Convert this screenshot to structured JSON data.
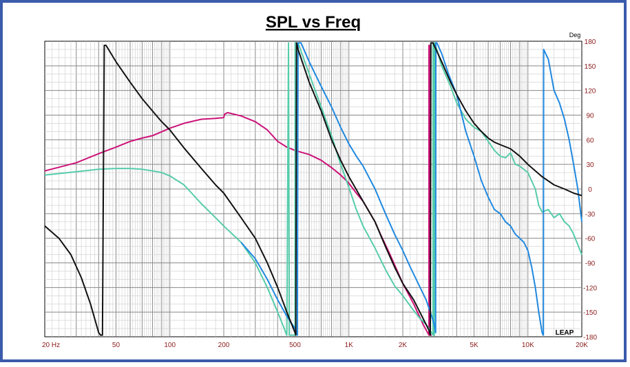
{
  "chart_data": {
    "type": "line",
    "title": "SPL vs Freq",
    "ylabel_unit": "Deg",
    "logo": "LEAP",
    "x_scale": "log",
    "xlim": [
      20,
      20000
    ],
    "ylim": [
      -180,
      180
    ],
    "grid": true,
    "x_ticks": [
      {
        "value": 20,
        "label": "20  Hz"
      },
      {
        "value": 50,
        "label": "50"
      },
      {
        "value": 100,
        "label": "100"
      },
      {
        "value": 200,
        "label": "200"
      },
      {
        "value": 500,
        "label": "500"
      },
      {
        "value": 1000,
        "label": "1K"
      },
      {
        "value": 2000,
        "label": "2K"
      },
      {
        "value": 5000,
        "label": "5K"
      },
      {
        "value": 10000,
        "label": "10K"
      },
      {
        "value": 20000,
        "label": "20K"
      }
    ],
    "y_ticks": [
      180,
      150,
      120,
      90,
      60,
      30,
      0,
      -30,
      -60,
      -90,
      -120,
      -150,
      -180
    ],
    "series": [
      {
        "color": "#cc1177",
        "points": [
          [
            20,
            22
          ],
          [
            30,
            32
          ],
          [
            40,
            43
          ],
          [
            50,
            51
          ],
          [
            60,
            58
          ],
          [
            70,
            62
          ],
          [
            80,
            65
          ],
          [
            100,
            74
          ],
          [
            120,
            80
          ],
          [
            150,
            85
          ],
          [
            180,
            86
          ],
          [
            200,
            87
          ],
          [
            202,
            91
          ],
          [
            210,
            93
          ],
          [
            250,
            89
          ],
          [
            300,
            82
          ],
          [
            350,
            72
          ],
          [
            400,
            58
          ],
          [
            450,
            51
          ],
          [
            500,
            47
          ],
          [
            600,
            42
          ],
          [
            700,
            35
          ],
          [
            800,
            26
          ],
          [
            900,
            17
          ],
          [
            1000,
            7
          ],
          [
            1100,
            -5
          ],
          [
            1200,
            -15
          ],
          [
            1300,
            -28
          ],
          [
            1400,
            -40
          ],
          [
            1500,
            -55
          ],
          [
            1700,
            -80
          ],
          [
            2000,
            -115
          ],
          [
            2300,
            -140
          ],
          [
            2600,
            -165
          ],
          [
            2800,
            -178
          ],
          [
            2801,
            175
          ],
          [
            2820,
            175
          ],
          [
            2821,
            -178
          ],
          [
            2900,
            -178
          ]
        ]
      },
      {
        "color": "#55ccaa",
        "points": [
          [
            20,
            17
          ],
          [
            30,
            21
          ],
          [
            40,
            24
          ],
          [
            50,
            25
          ],
          [
            60,
            25
          ],
          [
            70,
            24
          ],
          [
            80,
            22
          ],
          [
            90,
            20
          ],
          [
            100,
            16
          ],
          [
            120,
            5
          ],
          [
            150,
            -18
          ],
          [
            180,
            -35
          ],
          [
            200,
            -45
          ],
          [
            250,
            -65
          ],
          [
            300,
            -90
          ],
          [
            350,
            -120
          ],
          [
            400,
            -150
          ],
          [
            450,
            -178
          ],
          [
            460,
            178
          ],
          [
            465,
            -178
          ],
          [
            500,
            -178
          ],
          [
            501,
            178
          ],
          [
            520,
            178
          ],
          [
            600,
            140
          ],
          [
            700,
            100
          ],
          [
            800,
            65
          ],
          [
            900,
            30
          ],
          [
            1000,
            2
          ],
          [
            1100,
            -25
          ],
          [
            1200,
            -45
          ],
          [
            1400,
            -72
          ],
          [
            1600,
            -98
          ],
          [
            1800,
            -118
          ],
          [
            2000,
            -130
          ],
          [
            2300,
            -148
          ],
          [
            2500,
            -158
          ],
          [
            2700,
            -165
          ],
          [
            2800,
            -170
          ],
          [
            2950,
            -178
          ],
          [
            2951,
            178
          ],
          [
            2970,
            178
          ],
          [
            2980,
            -178
          ],
          [
            3000,
            -178
          ],
          [
            3020,
            178
          ],
          [
            3300,
            150
          ],
          [
            3700,
            125
          ],
          [
            4000,
            105
          ],
          [
            4500,
            85
          ],
          [
            5000,
            75
          ],
          [
            5500,
            70
          ],
          [
            6000,
            58
          ],
          [
            6500,
            47
          ],
          [
            7000,
            40
          ],
          [
            7500,
            38
          ],
          [
            8000,
            44
          ],
          [
            8500,
            30
          ],
          [
            9000,
            28
          ],
          [
            10000,
            20
          ],
          [
            11000,
            0
          ],
          [
            11500,
            -20
          ],
          [
            12000,
            -28
          ],
          [
            13000,
            -25
          ],
          [
            14000,
            -35
          ],
          [
            15000,
            -30
          ],
          [
            16000,
            -40
          ],
          [
            17000,
            -45
          ],
          [
            18000,
            -55
          ],
          [
            20000,
            -80
          ]
        ]
      },
      {
        "color": "#1e88e0",
        "points": [
          [
            250,
            -65
          ],
          [
            300,
            -85
          ],
          [
            350,
            -110
          ],
          [
            400,
            -135
          ],
          [
            450,
            -155
          ],
          [
            500,
            -170
          ],
          [
            515,
            -178
          ],
          [
            520,
            178
          ],
          [
            540,
            178
          ],
          [
            600,
            155
          ],
          [
            700,
            125
          ],
          [
            800,
            100
          ],
          [
            900,
            75
          ],
          [
            1000,
            55
          ],
          [
            1100,
            40
          ],
          [
            1200,
            28
          ],
          [
            1400,
            0
          ],
          [
            1600,
            -30
          ],
          [
            1800,
            -55
          ],
          [
            2000,
            -75
          ],
          [
            2200,
            -95
          ],
          [
            2500,
            -120
          ],
          [
            2700,
            -135
          ],
          [
            2850,
            -150
          ],
          [
            3000,
            -165
          ],
          [
            3050,
            -175
          ],
          [
            3060,
            178
          ],
          [
            3100,
            178
          ],
          [
            3300,
            165
          ],
          [
            3600,
            140
          ],
          [
            4000,
            115
          ],
          [
            4500,
            70
          ],
          [
            5000,
            40
          ],
          [
            5500,
            10
          ],
          [
            6000,
            -10
          ],
          [
            6500,
            -25
          ],
          [
            7000,
            -30
          ],
          [
            7500,
            -40
          ],
          [
            8000,
            -45
          ],
          [
            8500,
            -55
          ],
          [
            9000,
            -60
          ],
          [
            9500,
            -65
          ],
          [
            10000,
            -75
          ],
          [
            10500,
            -95
          ],
          [
            11000,
            -120
          ],
          [
            11500,
            -150
          ],
          [
            12000,
            -175
          ],
          [
            12200,
            -178
          ],
          [
            12250,
            170
          ],
          [
            13000,
            158
          ],
          [
            14000,
            120
          ],
          [
            15000,
            105
          ],
          [
            16000,
            85
          ],
          [
            17000,
            60
          ],
          [
            18000,
            30
          ],
          [
            19000,
            0
          ],
          [
            20000,
            -40
          ]
        ]
      },
      {
        "color": "#111111",
        "points": [
          [
            20,
            -45
          ],
          [
            24,
            -60
          ],
          [
            28,
            -80
          ],
          [
            32,
            -108
          ],
          [
            36,
            -140
          ],
          [
            40,
            -175
          ],
          [
            41,
            -178
          ],
          [
            42,
            -178
          ],
          [
            43,
            175
          ],
          [
            44,
            175
          ],
          [
            50,
            155
          ],
          [
            60,
            130
          ],
          [
            70,
            110
          ],
          [
            80,
            95
          ],
          [
            90,
            82
          ],
          [
            100,
            72
          ],
          [
            120,
            50
          ],
          [
            150,
            25
          ],
          [
            180,
            5
          ],
          [
            200,
            -5
          ],
          [
            250,
            -35
          ],
          [
            300,
            -60
          ],
          [
            350,
            -90
          ],
          [
            400,
            -120
          ],
          [
            450,
            -150
          ],
          [
            500,
            -175
          ],
          [
            505,
            -178
          ],
          [
            510,
            178
          ],
          [
            520,
            170
          ],
          [
            600,
            130
          ],
          [
            700,
            95
          ],
          [
            800,
            60
          ],
          [
            900,
            35
          ],
          [
            1000,
            15
          ],
          [
            1200,
            -15
          ],
          [
            1400,
            -40
          ],
          [
            1600,
            -70
          ],
          [
            1800,
            -95
          ],
          [
            2000,
            -115
          ],
          [
            2300,
            -135
          ],
          [
            2600,
            -158
          ],
          [
            2800,
            -172
          ],
          [
            2850,
            -178
          ],
          [
            2870,
            178
          ],
          [
            2950,
            178
          ],
          [
            3300,
            155
          ],
          [
            3700,
            130
          ],
          [
            4000,
            115
          ],
          [
            4500,
            95
          ],
          [
            5000,
            80
          ],
          [
            5500,
            70
          ],
          [
            6000,
            62
          ],
          [
            6500,
            57
          ],
          [
            7000,
            54
          ],
          [
            8000,
            49
          ],
          [
            9000,
            40
          ],
          [
            10000,
            30
          ],
          [
            12000,
            15
          ],
          [
            14000,
            5
          ],
          [
            16000,
            0
          ],
          [
            18000,
            -5
          ],
          [
            20000,
            -8
          ]
        ]
      }
    ]
  }
}
